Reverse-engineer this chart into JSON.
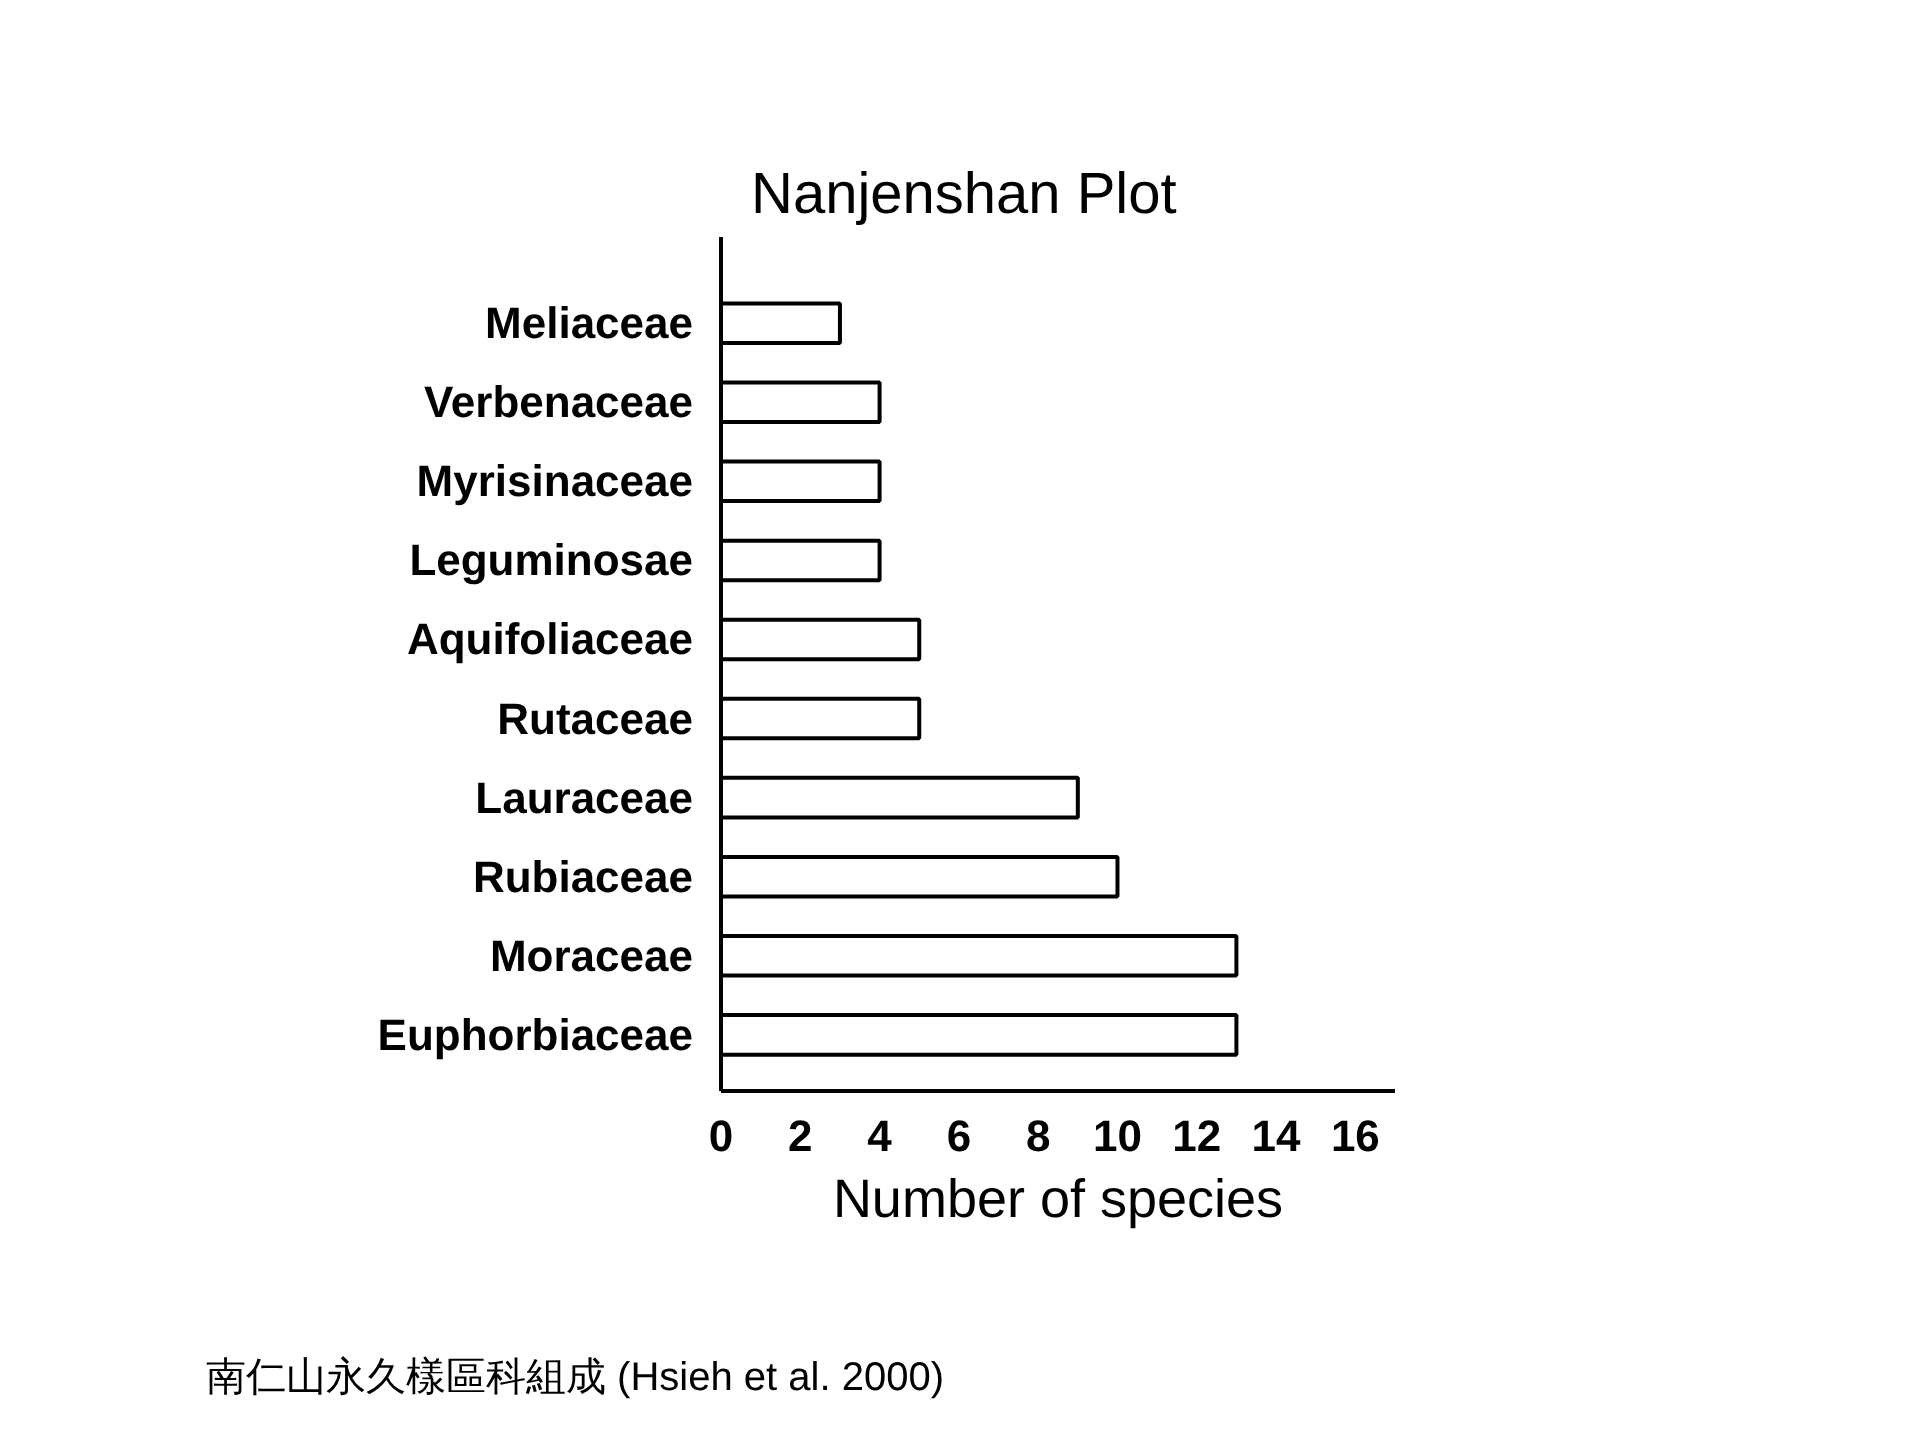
{
  "chart_data": {
    "type": "bar",
    "orientation": "horizontal",
    "title": "Nanjenshan Plot",
    "xlabel": "Number of species",
    "categories": [
      "Meliaceae",
      "Verbenaceae",
      "Myrisinaceae",
      "Leguminosae",
      "Aquifoliaceae",
      "Rutaceae",
      "Lauraceae",
      "Rubiaceae",
      "Moraceae",
      "Euphorbiaceae"
    ],
    "values": [
      3,
      4,
      4,
      4,
      5,
      5,
      9,
      10,
      13,
      13
    ],
    "color": "#ffffff",
    "xlim": [
      0,
      17
    ],
    "xticks": [
      0,
      2,
      4,
      6,
      8,
      10,
      12,
      14,
      16
    ],
    "annotations": [
      "南仁山永久樣區科組成 (Hsieh et al. 2000)"
    ]
  }
}
